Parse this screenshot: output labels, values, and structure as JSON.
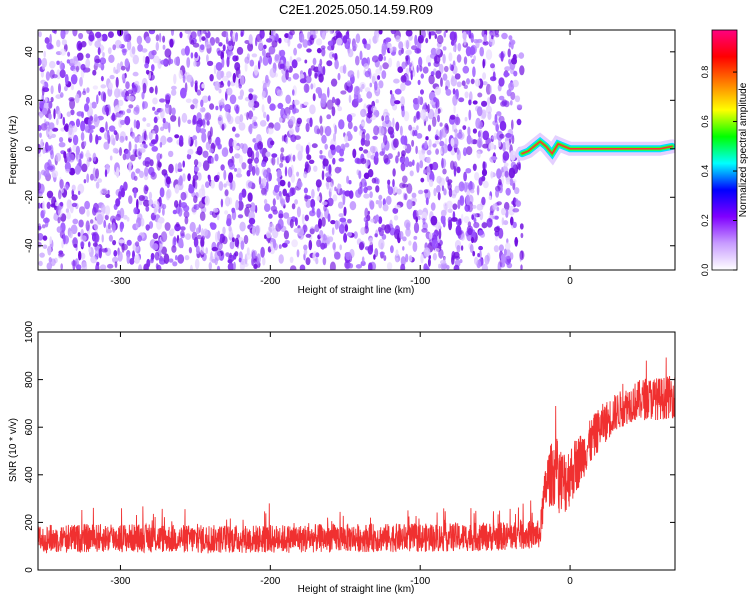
{
  "title": "C2E1.2025.050.14.59.R09",
  "chart_data": [
    {
      "type": "heatmap",
      "xlabel": "Height of straight line (km)",
      "ylabel": "Frequency (Hz)",
      "xlim": [
        -355,
        70
      ],
      "ylim": [
        -50,
        49
      ],
      "xticks": [
        -300,
        -200,
        -100,
        0
      ],
      "yticks": [
        -40,
        -20,
        0,
        20,
        40
      ],
      "noise_region_x": [
        -355,
        -32
      ],
      "signal_track": {
        "x": [
          -32,
          -28,
          -24,
          -20,
          -16,
          -12,
          -8,
          -4,
          0,
          10,
          20,
          30,
          40,
          50,
          60,
          68
        ],
        "y": [
          -2,
          -1,
          1,
          3,
          1,
          -2,
          2,
          1,
          0,
          0,
          0,
          0,
          0,
          0,
          0,
          1
        ]
      },
      "colorbar": {
        "label": "Normalized spectral amplitude",
        "range": [
          0.0,
          0.97
        ],
        "ticks": [
          0.0,
          0.2,
          0.4,
          0.6,
          0.8
        ],
        "colors": [
          "#ffffff",
          "#c89cff",
          "#8000ff",
          "#0000ff",
          "#00ffff",
          "#00ff00",
          "#ffff00",
          "#ff8000",
          "#ff0000",
          "#ff0080"
        ]
      },
      "grid": false
    },
    {
      "type": "line",
      "xlabel": "Height of straight line (km)",
      "ylabel": "SNR (10 * v/v)",
      "xlim": [
        -355,
        70
      ],
      "ylim": [
        0,
        1000
      ],
      "xticks": [
        -300,
        -200,
        -100,
        0
      ],
      "yticks": [
        0,
        200,
        400,
        600,
        800,
        1000
      ],
      "series": [
        {
          "color": "#f03030",
          "x": [
            -355,
            -300,
            -250,
            -200,
            -150,
            -100,
            -50,
            -20,
            -18,
            -15,
            -10,
            -5,
            0,
            10,
            20,
            30,
            40,
            50,
            60,
            70
          ],
          "y": [
            130,
            135,
            130,
            130,
            135,
            135,
            140,
            150,
            280,
            380,
            420,
            360,
            400,
            500,
            600,
            660,
            700,
            720,
            720,
            730
          ],
          "spread": [
            60,
            60,
            60,
            60,
            60,
            60,
            60,
            60,
            80,
            120,
            150,
            150,
            130,
            100,
            90,
            80,
            80,
            90,
            90,
            90
          ]
        }
      ],
      "grid": false
    }
  ]
}
